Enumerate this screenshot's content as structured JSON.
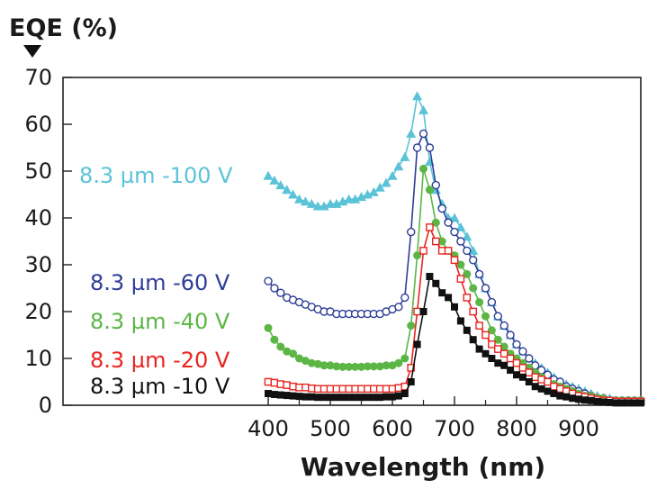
{
  "chart_data": {
    "type": "line",
    "ylabel": "EQE (%)",
    "xlabel": "Wavelength (nm)",
    "xlim": [
      400,
      1000
    ],
    "ylim": [
      0,
      70
    ],
    "x_ticks": [
      400,
      500,
      600,
      700,
      800,
      900
    ],
    "y_ticks": [
      0,
      10,
      20,
      30,
      40,
      50,
      60,
      70
    ],
    "grid": false,
    "legend": "inline labels to the left of each series",
    "series": [
      {
        "name": "8.3 µm -100 V",
        "color": "#5bc3d8",
        "marker": "filled-triangle",
        "points": [
          [
            400,
            49
          ],
          [
            410,
            48
          ],
          [
            420,
            47
          ],
          [
            430,
            46
          ],
          [
            440,
            45
          ],
          [
            450,
            44
          ],
          [
            460,
            43.5
          ],
          [
            470,
            43
          ],
          [
            480,
            42.5
          ],
          [
            490,
            42.5
          ],
          [
            500,
            43
          ],
          [
            510,
            43
          ],
          [
            520,
            43.5
          ],
          [
            530,
            44
          ],
          [
            540,
            44
          ],
          [
            550,
            44.5
          ],
          [
            560,
            45
          ],
          [
            570,
            45.5
          ],
          [
            580,
            46.5
          ],
          [
            590,
            47.5
          ],
          [
            600,
            49
          ],
          [
            610,
            51
          ],
          [
            620,
            53
          ],
          [
            630,
            58
          ],
          [
            640,
            66
          ],
          [
            650,
            63
          ],
          [
            660,
            52
          ],
          [
            670,
            46
          ],
          [
            680,
            43
          ],
          [
            690,
            40
          ],
          [
            700,
            40
          ],
          [
            710,
            38
          ],
          [
            720,
            36
          ],
          [
            730,
            33
          ],
          [
            740,
            28
          ],
          [
            750,
            25
          ],
          [
            760,
            22
          ],
          [
            770,
            19
          ],
          [
            780,
            17
          ],
          [
            790,
            15
          ],
          [
            800,
            13
          ],
          [
            810,
            11.5
          ],
          [
            820,
            10
          ],
          [
            830,
            9
          ],
          [
            840,
            8
          ],
          [
            850,
            7
          ],
          [
            860,
            6
          ],
          [
            870,
            5
          ],
          [
            880,
            4.5
          ],
          [
            890,
            4
          ],
          [
            900,
            3.5
          ],
          [
            910,
            3
          ],
          [
            920,
            2.5
          ],
          [
            930,
            2
          ],
          [
            940,
            1.5
          ],
          [
            950,
            1.5
          ],
          [
            960,
            1
          ],
          [
            970,
            1
          ],
          [
            980,
            1
          ],
          [
            990,
            1
          ],
          [
            1000,
            1
          ]
        ]
      },
      {
        "name": "8.3 µm -60 V",
        "color": "#2e3d96",
        "marker": "open-circle",
        "points": [
          [
            400,
            26.5
          ],
          [
            410,
            25
          ],
          [
            420,
            24
          ],
          [
            430,
            23
          ],
          [
            440,
            22.5
          ],
          [
            450,
            22
          ],
          [
            460,
            21.5
          ],
          [
            470,
            21
          ],
          [
            480,
            20.5
          ],
          [
            490,
            20
          ],
          [
            500,
            20
          ],
          [
            510,
            19.5
          ],
          [
            520,
            19.5
          ],
          [
            530,
            19.5
          ],
          [
            540,
            19.5
          ],
          [
            550,
            19.5
          ],
          [
            560,
            19.5
          ],
          [
            570,
            19.5
          ],
          [
            580,
            19.5
          ],
          [
            590,
            20
          ],
          [
            600,
            20.5
          ],
          [
            610,
            21
          ],
          [
            620,
            23
          ],
          [
            630,
            37
          ],
          [
            640,
            55
          ],
          [
            650,
            58
          ],
          [
            660,
            55
          ],
          [
            670,
            47
          ],
          [
            680,
            42
          ],
          [
            690,
            39
          ],
          [
            700,
            37
          ],
          [
            710,
            35
          ],
          [
            720,
            33
          ],
          [
            730,
            31
          ],
          [
            740,
            28
          ],
          [
            750,
            25
          ],
          [
            760,
            22
          ],
          [
            770,
            19
          ],
          [
            780,
            17
          ],
          [
            790,
            15
          ],
          [
            800,
            13
          ],
          [
            810,
            11.5
          ],
          [
            820,
            10
          ],
          [
            830,
            8.5
          ],
          [
            840,
            7.5
          ],
          [
            850,
            6.5
          ],
          [
            860,
            5.5
          ],
          [
            870,
            5
          ],
          [
            880,
            4
          ],
          [
            890,
            3.5
          ],
          [
            900,
            3
          ],
          [
            910,
            2.5
          ],
          [
            920,
            2
          ],
          [
            930,
            1.5
          ],
          [
            940,
            1.5
          ],
          [
            950,
            1
          ],
          [
            960,
            1
          ],
          [
            970,
            1
          ],
          [
            980,
            1
          ],
          [
            990,
            1
          ],
          [
            1000,
            1
          ]
        ]
      },
      {
        "name": "8.3 µm -40 V",
        "color": "#5cb646",
        "marker": "filled-circle",
        "points": [
          [
            400,
            16.5
          ],
          [
            410,
            14
          ],
          [
            420,
            12.5
          ],
          [
            430,
            11.5
          ],
          [
            440,
            11
          ],
          [
            450,
            10
          ],
          [
            460,
            9.5
          ],
          [
            470,
            9
          ],
          [
            480,
            8.8
          ],
          [
            490,
            8.5
          ],
          [
            500,
            8.5
          ],
          [
            510,
            8.3
          ],
          [
            520,
            8.2
          ],
          [
            530,
            8.2
          ],
          [
            540,
            8.2
          ],
          [
            550,
            8.2
          ],
          [
            560,
            8.3
          ],
          [
            570,
            8.3
          ],
          [
            580,
            8.3
          ],
          [
            590,
            8.5
          ],
          [
            600,
            8.5
          ],
          [
            610,
            9
          ],
          [
            620,
            10
          ],
          [
            630,
            17
          ],
          [
            640,
            32
          ],
          [
            650,
            50.5
          ],
          [
            660,
            46
          ],
          [
            670,
            39
          ],
          [
            680,
            35
          ],
          [
            690,
            33
          ],
          [
            700,
            32
          ],
          [
            710,
            30
          ],
          [
            720,
            28
          ],
          [
            730,
            25
          ],
          [
            740,
            22
          ],
          [
            750,
            19
          ],
          [
            760,
            16
          ],
          [
            770,
            14
          ],
          [
            780,
            12.5
          ],
          [
            790,
            11
          ],
          [
            800,
            10
          ],
          [
            810,
            9
          ],
          [
            820,
            8
          ],
          [
            830,
            7
          ],
          [
            840,
            6
          ],
          [
            850,
            5
          ],
          [
            860,
            4.5
          ],
          [
            870,
            4
          ],
          [
            880,
            3.5
          ],
          [
            890,
            3
          ],
          [
            900,
            2.5
          ],
          [
            910,
            2
          ],
          [
            920,
            2
          ],
          [
            930,
            1.5
          ],
          [
            940,
            1.5
          ],
          [
            950,
            1
          ],
          [
            960,
            1
          ],
          [
            970,
            1
          ],
          [
            980,
            1
          ],
          [
            990,
            1
          ],
          [
            1000,
            1
          ]
        ]
      },
      {
        "name": "8.3 µm -20 V",
        "color": "#e8241f",
        "marker": "open-square",
        "points": [
          [
            400,
            5
          ],
          [
            410,
            4.8
          ],
          [
            420,
            4.5
          ],
          [
            430,
            4.3
          ],
          [
            440,
            4
          ],
          [
            450,
            3.8
          ],
          [
            460,
            3.8
          ],
          [
            470,
            3.6
          ],
          [
            480,
            3.5
          ],
          [
            490,
            3.5
          ],
          [
            500,
            3.5
          ],
          [
            510,
            3.5
          ],
          [
            520,
            3.5
          ],
          [
            530,
            3.5
          ],
          [
            540,
            3.5
          ],
          [
            550,
            3.5
          ],
          [
            560,
            3.5
          ],
          [
            570,
            3.5
          ],
          [
            580,
            3.5
          ],
          [
            590,
            3.5
          ],
          [
            600,
            3.5
          ],
          [
            610,
            3.7
          ],
          [
            620,
            4
          ],
          [
            630,
            8
          ],
          [
            640,
            20
          ],
          [
            650,
            33
          ],
          [
            660,
            38
          ],
          [
            670,
            35
          ],
          [
            680,
            33
          ],
          [
            690,
            33
          ],
          [
            700,
            31
          ],
          [
            710,
            27
          ],
          [
            720,
            23
          ],
          [
            730,
            20
          ],
          [
            740,
            17
          ],
          [
            750,
            15
          ],
          [
            760,
            13
          ],
          [
            770,
            12
          ],
          [
            780,
            11
          ],
          [
            790,
            10
          ],
          [
            800,
            9
          ],
          [
            810,
            8
          ],
          [
            820,
            7
          ],
          [
            830,
            6
          ],
          [
            840,
            5.5
          ],
          [
            850,
            5
          ],
          [
            860,
            4
          ],
          [
            870,
            3.5
          ],
          [
            880,
            3
          ],
          [
            890,
            2.5
          ],
          [
            900,
            2
          ],
          [
            910,
            1.8
          ],
          [
            920,
            1.5
          ],
          [
            930,
            1.2
          ],
          [
            940,
            1
          ],
          [
            950,
            1
          ],
          [
            960,
            0.8
          ],
          [
            970,
            0.8
          ],
          [
            980,
            0.8
          ],
          [
            990,
            0.8
          ],
          [
            1000,
            0.8
          ]
        ]
      },
      {
        "name": "8.3 µm -10 V",
        "color": "#111111",
        "marker": "filled-square",
        "points": [
          [
            400,
            2.5
          ],
          [
            410,
            2.3
          ],
          [
            420,
            2.2
          ],
          [
            430,
            2.1
          ],
          [
            440,
            2
          ],
          [
            450,
            1.9
          ],
          [
            460,
            1.8
          ],
          [
            470,
            1.8
          ],
          [
            480,
            1.7
          ],
          [
            490,
            1.7
          ],
          [
            500,
            1.7
          ],
          [
            510,
            1.7
          ],
          [
            520,
            1.7
          ],
          [
            530,
            1.7
          ],
          [
            540,
            1.7
          ],
          [
            550,
            1.7
          ],
          [
            560,
            1.7
          ],
          [
            570,
            1.7
          ],
          [
            580,
            1.7
          ],
          [
            590,
            1.8
          ],
          [
            600,
            1.8
          ],
          [
            610,
            2
          ],
          [
            620,
            2.5
          ],
          [
            630,
            5
          ],
          [
            640,
            13
          ],
          [
            650,
            20
          ],
          [
            660,
            27.5
          ],
          [
            670,
            26
          ],
          [
            680,
            24
          ],
          [
            690,
            23
          ],
          [
            700,
            21
          ],
          [
            710,
            18
          ],
          [
            720,
            16
          ],
          [
            730,
            14
          ],
          [
            740,
            12
          ],
          [
            750,
            11
          ],
          [
            760,
            10
          ],
          [
            770,
            9
          ],
          [
            780,
            8.5
          ],
          [
            790,
            7.5
          ],
          [
            800,
            6.5
          ],
          [
            810,
            6
          ],
          [
            820,
            5
          ],
          [
            830,
            4
          ],
          [
            840,
            3.5
          ],
          [
            850,
            3
          ],
          [
            860,
            2.5
          ],
          [
            870,
            2
          ],
          [
            880,
            1.8
          ],
          [
            890,
            1.5
          ],
          [
            900,
            1.3
          ],
          [
            910,
            1.1
          ],
          [
            920,
            1
          ],
          [
            930,
            0.8
          ],
          [
            940,
            0.7
          ],
          [
            950,
            0.6
          ],
          [
            960,
            0.5
          ],
          [
            970,
            0.5
          ],
          [
            980,
            0.5
          ],
          [
            990,
            0.5
          ],
          [
            1000,
            0.5
          ]
        ]
      }
    ]
  }
}
